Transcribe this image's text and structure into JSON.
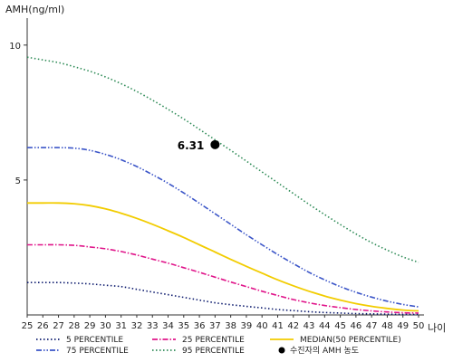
{
  "chart_data": {
    "type": "line",
    "ylabel": "AMH(ng/ml)",
    "xlabel": "나이",
    "xlim": [
      25,
      50
    ],
    "ylim": [
      0,
      11
    ],
    "yticks": [
      5,
      10
    ],
    "x": [
      25,
      26,
      27,
      28,
      29,
      30,
      31,
      32,
      33,
      34,
      35,
      36,
      37,
      38,
      39,
      40,
      41,
      42,
      43,
      44,
      45,
      46,
      47,
      48,
      49,
      50
    ],
    "grid": false,
    "legend_position": "bottom",
    "series": [
      {
        "name": "5 PERCENTILE",
        "color": "#0d1b6e",
        "dash": "dot",
        "values": [
          1.2,
          1.2,
          1.2,
          1.18,
          1.15,
          1.1,
          1.05,
          0.95,
          0.85,
          0.75,
          0.65,
          0.55,
          0.45,
          0.38,
          0.32,
          0.26,
          0.2,
          0.16,
          0.12,
          0.09,
          0.07,
          0.05,
          0.04,
          0.03,
          0.02,
          0.02
        ]
      },
      {
        "name": "25 PERCENTILE",
        "color": "#e0158a",
        "dash": "dashdot",
        "values": [
          2.6,
          2.6,
          2.6,
          2.58,
          2.52,
          2.45,
          2.35,
          2.22,
          2.07,
          1.92,
          1.75,
          1.58,
          1.4,
          1.22,
          1.05,
          0.88,
          0.72,
          0.57,
          0.45,
          0.35,
          0.27,
          0.2,
          0.15,
          0.11,
          0.08,
          0.07
        ]
      },
      {
        "name": "MEDIAN(50 PERCENTILE)",
        "color": "#f2cc00",
        "dash": "solid",
        "values": [
          4.15,
          4.15,
          4.15,
          4.12,
          4.05,
          3.93,
          3.77,
          3.58,
          3.36,
          3.12,
          2.87,
          2.6,
          2.33,
          2.06,
          1.8,
          1.55,
          1.3,
          1.08,
          0.88,
          0.7,
          0.55,
          0.42,
          0.32,
          0.24,
          0.18,
          0.15
        ]
      },
      {
        "name": "75 PERCENTILE",
        "color": "#3b55c8",
        "dash": "dashdotdot",
        "values": [
          6.2,
          6.2,
          6.2,
          6.18,
          6.1,
          5.95,
          5.75,
          5.5,
          5.2,
          4.88,
          4.52,
          4.14,
          3.75,
          3.36,
          2.97,
          2.6,
          2.24,
          1.9,
          1.58,
          1.3,
          1.05,
          0.84,
          0.66,
          0.51,
          0.39,
          0.3
        ]
      },
      {
        "name": "95 PERCENTILE",
        "color": "#2e8b57",
        "dash": "dot",
        "values": [
          9.55,
          9.45,
          9.35,
          9.2,
          9.03,
          8.82,
          8.57,
          8.28,
          7.96,
          7.62,
          7.26,
          6.88,
          6.49,
          6.1,
          5.7,
          5.3,
          4.9,
          4.5,
          4.1,
          3.72,
          3.35,
          3.0,
          2.68,
          2.4,
          2.15,
          1.95
        ]
      }
    ],
    "marker": {
      "name": "수진자의 AMH 농도",
      "x": 37,
      "y": 6.31,
      "label": "6.31",
      "color": "#000000"
    }
  }
}
